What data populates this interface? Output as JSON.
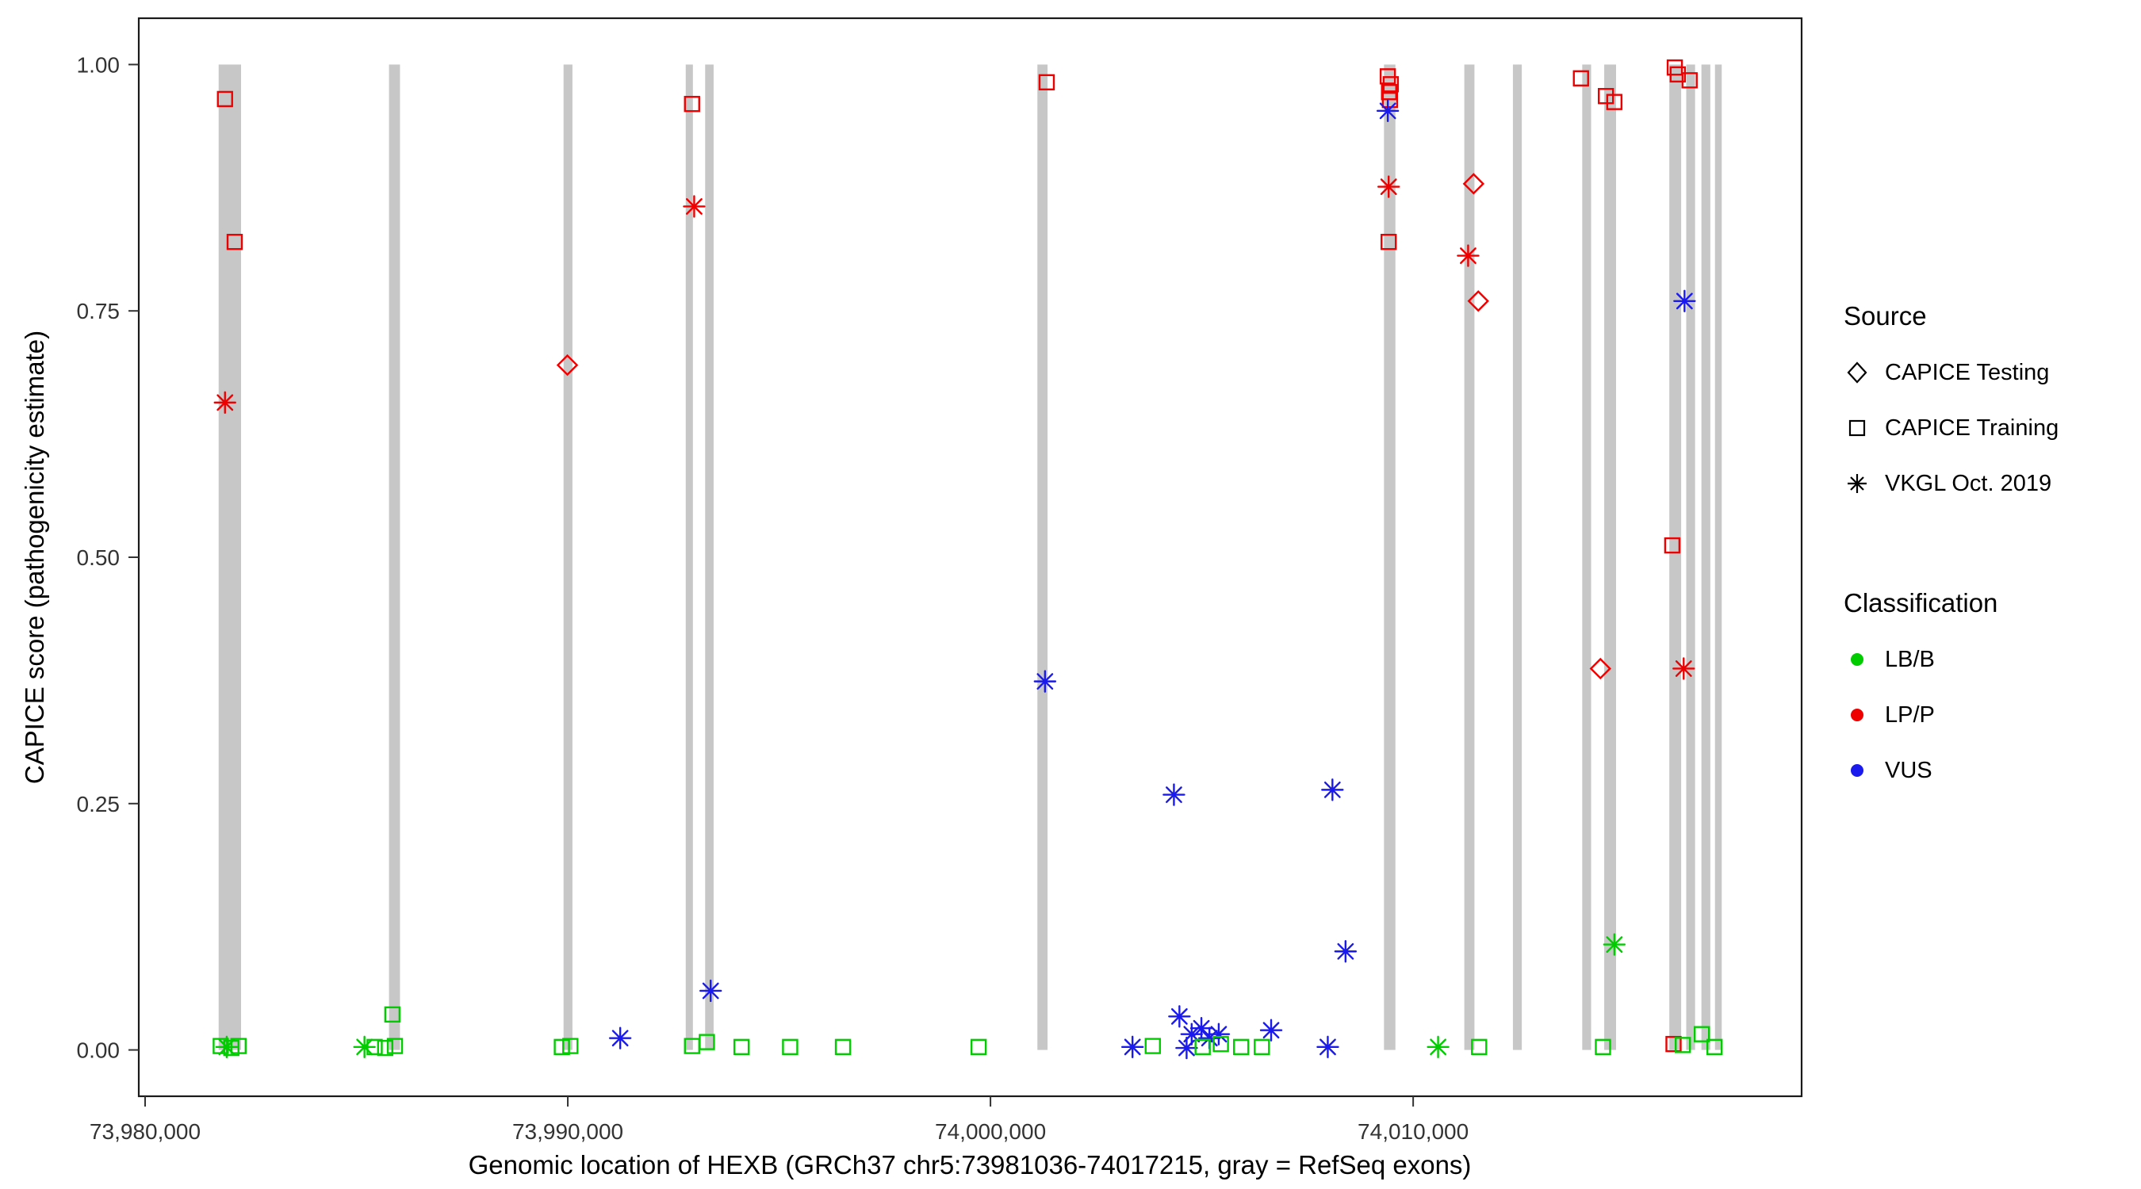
{
  "chart_data": {
    "type": "scatter",
    "title": "",
    "xlabel": "Genomic location of HEXB (GRCh37 chr5:73981036-74017215, gray = RefSeq exons)",
    "ylabel": "CAPICE score (pathogenicity estimate)",
    "xlim": [
      73979850,
      74019190
    ],
    "ylim": [
      -0.047,
      1.047
    ],
    "grid": false,
    "legend_position": "right",
    "x_ticks": [
      {
        "value": 73980000,
        "label": "73,980,000"
      },
      {
        "value": 73990000,
        "label": "73,990,000"
      },
      {
        "value": 74000000,
        "label": "74,000,000"
      },
      {
        "value": 74010000,
        "label": "74,010,000"
      }
    ],
    "y_ticks": [
      {
        "value": 0.0,
        "label": "0.00"
      },
      {
        "value": 0.25,
        "label": "0.25"
      },
      {
        "value": 0.5,
        "label": "0.50"
      },
      {
        "value": 0.75,
        "label": "0.75"
      },
      {
        "value": 1.0,
        "label": "1.00"
      }
    ],
    "exon_color": "#c7c7c7",
    "exons": [
      [
        73981740,
        73982270
      ],
      [
        73985770,
        73986030
      ],
      [
        73989900,
        73990110
      ],
      [
        73992790,
        73992960
      ],
      [
        73993250,
        73993450
      ],
      [
        74001110,
        74001350
      ],
      [
        74009310,
        74009580
      ],
      [
        74011210,
        74011450
      ],
      [
        74012360,
        74012570
      ],
      [
        74014000,
        74014210
      ],
      [
        74014520,
        74014800
      ],
      [
        74016060,
        74016340
      ],
      [
        74016460,
        74016670
      ],
      [
        74016820,
        74017030
      ],
      [
        74017140,
        74017300
      ]
    ],
    "classification_colors": {
      "LB/B": "#00cc00",
      "LP/P": "#ee0000",
      "VUS": "#1a1aee"
    },
    "source_shapes": {
      "testing": "diamond",
      "training": "square",
      "vkgl": "asterisk"
    },
    "points": [
      {
        "x": 73981890,
        "y": 0.965,
        "src": "training",
        "cls": "LP/P"
      },
      {
        "x": 73982120,
        "y": 0.82,
        "src": "training",
        "cls": "LP/P"
      },
      {
        "x": 73992940,
        "y": 0.96,
        "src": "training",
        "cls": "LP/P"
      },
      {
        "x": 74001330,
        "y": 0.982,
        "src": "training",
        "cls": "LP/P"
      },
      {
        "x": 74009400,
        "y": 0.988,
        "src": "training",
        "cls": "LP/P"
      },
      {
        "x": 74009470,
        "y": 0.98,
        "src": "training",
        "cls": "LP/P"
      },
      {
        "x": 74009430,
        "y": 0.972,
        "src": "training",
        "cls": "LP/P"
      },
      {
        "x": 74009450,
        "y": 0.964,
        "src": "training",
        "cls": "LP/P"
      },
      {
        "x": 74009420,
        "y": 0.82,
        "src": "training",
        "cls": "LP/P"
      },
      {
        "x": 74013970,
        "y": 0.986,
        "src": "training",
        "cls": "LP/P"
      },
      {
        "x": 74014560,
        "y": 0.968,
        "src": "training",
        "cls": "LP/P"
      },
      {
        "x": 74014760,
        "y": 0.962,
        "src": "training",
        "cls": "LP/P"
      },
      {
        "x": 74016130,
        "y": 0.512,
        "src": "training",
        "cls": "LP/P"
      },
      {
        "x": 74016190,
        "y": 0.997,
        "src": "training",
        "cls": "LP/P"
      },
      {
        "x": 74016260,
        "y": 0.99,
        "src": "training",
        "cls": "LP/P"
      },
      {
        "x": 74016540,
        "y": 0.984,
        "src": "training",
        "cls": "LP/P"
      },
      {
        "x": 74016160,
        "y": 0.006,
        "src": "training",
        "cls": "LP/P"
      },
      {
        "x": 73989990,
        "y": 0.695,
        "src": "testing",
        "cls": "LP/P"
      },
      {
        "x": 74011430,
        "y": 0.879,
        "src": "testing",
        "cls": "LP/P"
      },
      {
        "x": 74011540,
        "y": 0.76,
        "src": "testing",
        "cls": "LP/P"
      },
      {
        "x": 74014430,
        "y": 0.387,
        "src": "testing",
        "cls": "LP/P"
      },
      {
        "x": 73981890,
        "y": 0.657,
        "src": "vkgl",
        "cls": "LP/P"
      },
      {
        "x": 73992990,
        "y": 0.856,
        "src": "vkgl",
        "cls": "LP/P"
      },
      {
        "x": 74009420,
        "y": 0.876,
        "src": "vkgl",
        "cls": "LP/P"
      },
      {
        "x": 74011300,
        "y": 0.806,
        "src": "vkgl",
        "cls": "LP/P"
      },
      {
        "x": 74016400,
        "y": 0.387,
        "src": "vkgl",
        "cls": "LP/P"
      },
      {
        "x": 74009400,
        "y": 0.953,
        "src": "vkgl",
        "cls": "VUS"
      },
      {
        "x": 74016420,
        "y": 0.76,
        "src": "vkgl",
        "cls": "VUS"
      },
      {
        "x": 74001290,
        "y": 0.374,
        "src": "vkgl",
        "cls": "VUS"
      },
      {
        "x": 74004340,
        "y": 0.259,
        "src": "vkgl",
        "cls": "VUS"
      },
      {
        "x": 74008090,
        "y": 0.264,
        "src": "vkgl",
        "cls": "VUS"
      },
      {
        "x": 74008400,
        "y": 0.1,
        "src": "vkgl",
        "cls": "VUS"
      },
      {
        "x": 73993380,
        "y": 0.06,
        "src": "vkgl",
        "cls": "VUS"
      },
      {
        "x": 73991240,
        "y": 0.012,
        "src": "vkgl",
        "cls": "VUS"
      },
      {
        "x": 74004470,
        "y": 0.034,
        "src": "vkgl",
        "cls": "VUS"
      },
      {
        "x": 74004760,
        "y": 0.016,
        "src": "vkgl",
        "cls": "VUS"
      },
      {
        "x": 74004990,
        "y": 0.022,
        "src": "vkgl",
        "cls": "VUS"
      },
      {
        "x": 74005180,
        "y": 0.012,
        "src": "vkgl",
        "cls": "VUS"
      },
      {
        "x": 74005400,
        "y": 0.016,
        "src": "vkgl",
        "cls": "VUS"
      },
      {
        "x": 74006640,
        "y": 0.02,
        "src": "vkgl",
        "cls": "VUS"
      },
      {
        "x": 74003360,
        "y": 0.003,
        "src": "vkgl",
        "cls": "VUS"
      },
      {
        "x": 74004640,
        "y": 0.002,
        "src": "vkgl",
        "cls": "VUS"
      },
      {
        "x": 74007980,
        "y": 0.003,
        "src": "vkgl",
        "cls": "VUS"
      },
      {
        "x": 73981790,
        "y": 0.004,
        "src": "training",
        "cls": "LB/B"
      },
      {
        "x": 73982040,
        "y": 0.002,
        "src": "training",
        "cls": "LB/B"
      },
      {
        "x": 73982210,
        "y": 0.004,
        "src": "training",
        "cls": "LB/B"
      },
      {
        "x": 73985850,
        "y": 0.036,
        "src": "training",
        "cls": "LB/B"
      },
      {
        "x": 73985430,
        "y": 0.003,
        "src": "training",
        "cls": "LB/B"
      },
      {
        "x": 73985680,
        "y": 0.002,
        "src": "training",
        "cls": "LB/B"
      },
      {
        "x": 73985910,
        "y": 0.004,
        "src": "training",
        "cls": "LB/B"
      },
      {
        "x": 73989860,
        "y": 0.003,
        "src": "training",
        "cls": "LB/B"
      },
      {
        "x": 73990060,
        "y": 0.004,
        "src": "training",
        "cls": "LB/B"
      },
      {
        "x": 73992940,
        "y": 0.004,
        "src": "training",
        "cls": "LB/B"
      },
      {
        "x": 73993290,
        "y": 0.008,
        "src": "training",
        "cls": "LB/B"
      },
      {
        "x": 73994110,
        "y": 0.003,
        "src": "training",
        "cls": "LB/B"
      },
      {
        "x": 73995260,
        "y": 0.003,
        "src": "training",
        "cls": "LB/B"
      },
      {
        "x": 73996510,
        "y": 0.003,
        "src": "training",
        "cls": "LB/B"
      },
      {
        "x": 73999720,
        "y": 0.003,
        "src": "training",
        "cls": "LB/B"
      },
      {
        "x": 74003840,
        "y": 0.004,
        "src": "training",
        "cls": "LB/B"
      },
      {
        "x": 74005020,
        "y": 0.003,
        "src": "training",
        "cls": "LB/B"
      },
      {
        "x": 74005450,
        "y": 0.006,
        "src": "training",
        "cls": "LB/B"
      },
      {
        "x": 74005930,
        "y": 0.003,
        "src": "training",
        "cls": "LB/B"
      },
      {
        "x": 74006420,
        "y": 0.003,
        "src": "training",
        "cls": "LB/B"
      },
      {
        "x": 74011560,
        "y": 0.003,
        "src": "training",
        "cls": "LB/B"
      },
      {
        "x": 74014490,
        "y": 0.003,
        "src": "training",
        "cls": "LB/B"
      },
      {
        "x": 74016380,
        "y": 0.005,
        "src": "training",
        "cls": "LB/B"
      },
      {
        "x": 74016830,
        "y": 0.016,
        "src": "training",
        "cls": "LB/B"
      },
      {
        "x": 74017130,
        "y": 0.003,
        "src": "training",
        "cls": "LB/B"
      },
      {
        "x": 73981930,
        "y": 0.003,
        "src": "vkgl",
        "cls": "LB/B"
      },
      {
        "x": 73985190,
        "y": 0.003,
        "src": "vkgl",
        "cls": "LB/B"
      },
      {
        "x": 74010590,
        "y": 0.003,
        "src": "vkgl",
        "cls": "LB/B"
      },
      {
        "x": 74014760,
        "y": 0.107,
        "src": "vkgl",
        "cls": "LB/B"
      }
    ]
  },
  "legend": {
    "source": {
      "title": "Source",
      "items": [
        {
          "label": "CAPICE Testing",
          "shape": "diamond"
        },
        {
          "label": "CAPICE Training",
          "shape": "square"
        },
        {
          "label": "VKGL Oct. 2019",
          "shape": "asterisk"
        }
      ]
    },
    "classification": {
      "title": "Classification",
      "items": [
        {
          "label": "LB/B",
          "color": "#00cc00"
        },
        {
          "label": "LP/P",
          "color": "#ee0000"
        },
        {
          "label": "VUS",
          "color": "#1a1aee"
        }
      ]
    }
  }
}
